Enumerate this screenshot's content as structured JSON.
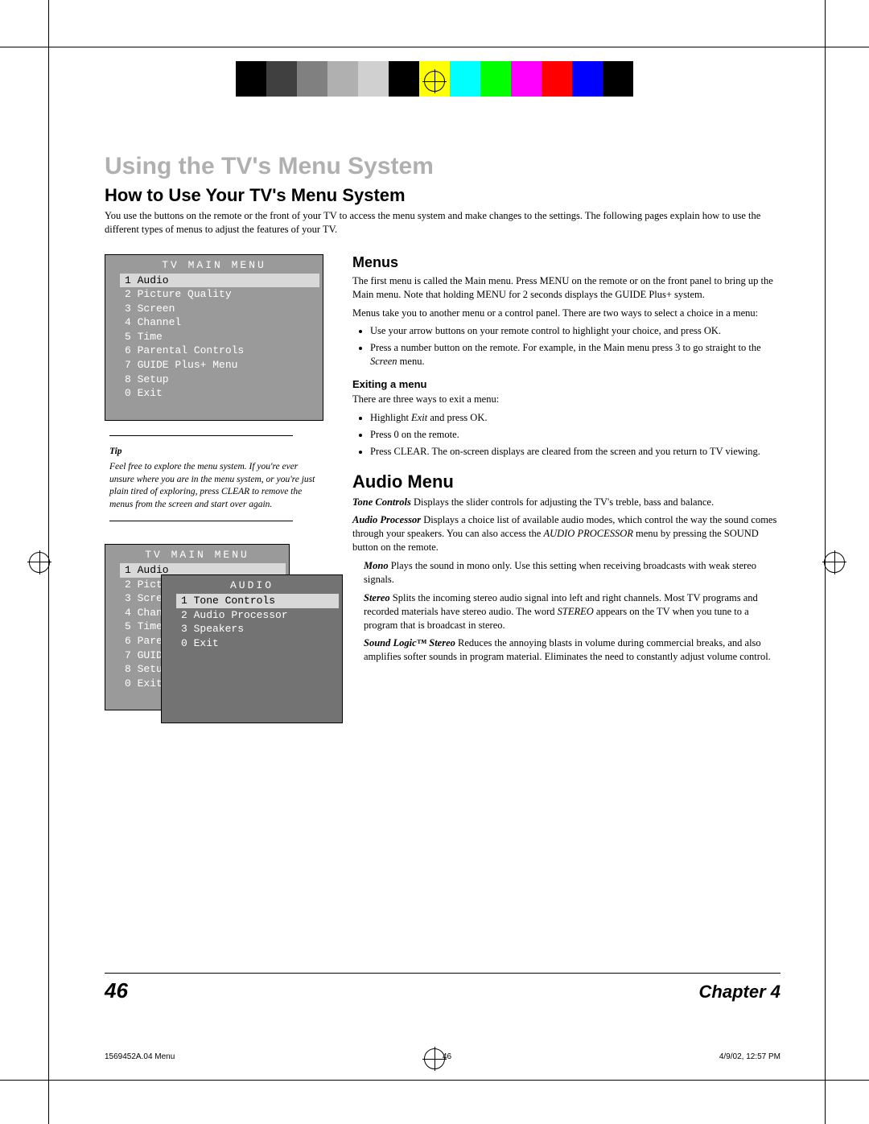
{
  "colorBars": [
    "#000000",
    "#404040",
    "#808080",
    "#b0b0b0",
    "#d0d0d0",
    "#000000",
    "#ffff00",
    "#00ffff",
    "#00ff00",
    "#ff00ff",
    "#ff0000",
    "#0000ff",
    "#000000"
  ],
  "chapterTitle": "Using the TV's Menu System",
  "sectionTitle": "How to Use Your TV's Menu System",
  "intro1": "You use the buttons on the remote or the front of your TV to access the menu system and make changes to the settings.",
  "intro2": "The following pages explain how to use the different types of menus to adjust the features of your TV.",
  "mainMenu": {
    "title": "TV MAIN MENU",
    "items": [
      {
        "n": "1",
        "label": "Audio",
        "hl": true
      },
      {
        "n": "2",
        "label": "Picture Quality"
      },
      {
        "n": "3",
        "label": "Screen"
      },
      {
        "n": "4",
        "label": "Channel"
      },
      {
        "n": "5",
        "label": "Time"
      },
      {
        "n": "6",
        "label": "Parental Controls"
      },
      {
        "n": "7",
        "label": "GUIDE Plus+ Menu"
      },
      {
        "n": "8",
        "label": "Setup"
      },
      {
        "n": "0",
        "label": "Exit"
      }
    ]
  },
  "tip": {
    "label": "Tip",
    "text": "Feel free to explore the menu system. If you're ever unsure where you are in the menu system, or you're just plain tired of exploring, press CLEAR to remove the menus from the screen and start over again."
  },
  "stackedMenu": {
    "backTitle": "TV MAIN MENU",
    "backItems": [
      {
        "n": "1",
        "label": "Audio",
        "hl": true
      },
      {
        "n": "2",
        "label": "Pictu"
      },
      {
        "n": "3",
        "label": "Scree"
      },
      {
        "n": "4",
        "label": "Chann"
      },
      {
        "n": "5",
        "label": "Time"
      },
      {
        "n": "6",
        "label": "Paren"
      },
      {
        "n": "7",
        "label": "GUIDE"
      },
      {
        "n": "8",
        "label": "Setup"
      },
      {
        "n": "0",
        "label": "Exit"
      }
    ],
    "frontTitle": "AUDIO",
    "frontItems": [
      {
        "n": "1",
        "label": "Tone Controls",
        "hl": true
      },
      {
        "n": "2",
        "label": "Audio Processor"
      },
      {
        "n": "3",
        "label": "Speakers"
      },
      {
        "n": "0",
        "label": "Exit"
      }
    ]
  },
  "menusHeading": "Menus",
  "menusP1": "The first menu is called the Main menu. Press MENU on the remote or on the front panel to bring up the Main menu. Note that holding MENU for 2 seconds displays the GUIDE Plus+ system.",
  "menusP2": "Menus take you to another menu or a control panel. There are two ways to select a choice in a menu:",
  "menusBullets": [
    "Use your arrow buttons on your remote control to highlight your choice, and press OK.",
    "Press a number button on the remote. For example, in the Main menu press 3 to go straight to the Screen menu."
  ],
  "menusBullet2Pre": "Press a number button on the remote. For example, in the Main menu press 3 to go straight to the ",
  "menusBullet2Ital": "Screen",
  "menusBullet2Post": " menu.",
  "exitingHeading": "Exiting a menu",
  "exitingP": "There are three ways to exit a menu:",
  "exitingBullets": {
    "b1Pre": "Highlight ",
    "b1Ital": "Exit",
    "b1Post": " and press OK.",
    "b2": "Press 0 on the remote.",
    "b3": "Press CLEAR. The on-screen displays are cleared from the screen and you return to TV viewing."
  },
  "audioHeading": "Audio Menu",
  "audioDefs": {
    "toneControls": {
      "term": "Tone Controls",
      "text": "   Displays the slider controls for adjusting the TV's treble, bass and balance."
    },
    "audioProcessor": {
      "term": "Audio Processor",
      "textPre": "   Displays a choice list of available audio modes, which control the way the sound comes through your speakers. You can also access the ",
      "ital": "AUDIO PROCESSOR",
      "textPost": " menu by pressing the SOUND button on the remote."
    },
    "mono": {
      "term": "Mono",
      "text": "   Plays the sound in mono only. Use this setting when receiving broadcasts with weak stereo signals."
    },
    "stereo": {
      "term": "Stereo",
      "textPre": "   Splits the incoming stereo audio signal into left and right channels. Most TV programs and recorded materials have stereo audio. The word ",
      "ital": "STEREO",
      "textPost": " appears on the TV when you tune to a program that is broadcast in stereo."
    },
    "soundLogic": {
      "term": "Sound Logic™ Stereo",
      "text": "   Reduces the annoying blasts in volume during commercial breaks, and also amplifies softer sounds in program material. Eliminates the need to constantly adjust volume control."
    }
  },
  "footer": {
    "pageNum": "46",
    "chapter": "Chapter 4",
    "meta1": "1569452A.04 Menu",
    "meta2": "46",
    "meta3": "4/9/02, 12:57 PM"
  }
}
